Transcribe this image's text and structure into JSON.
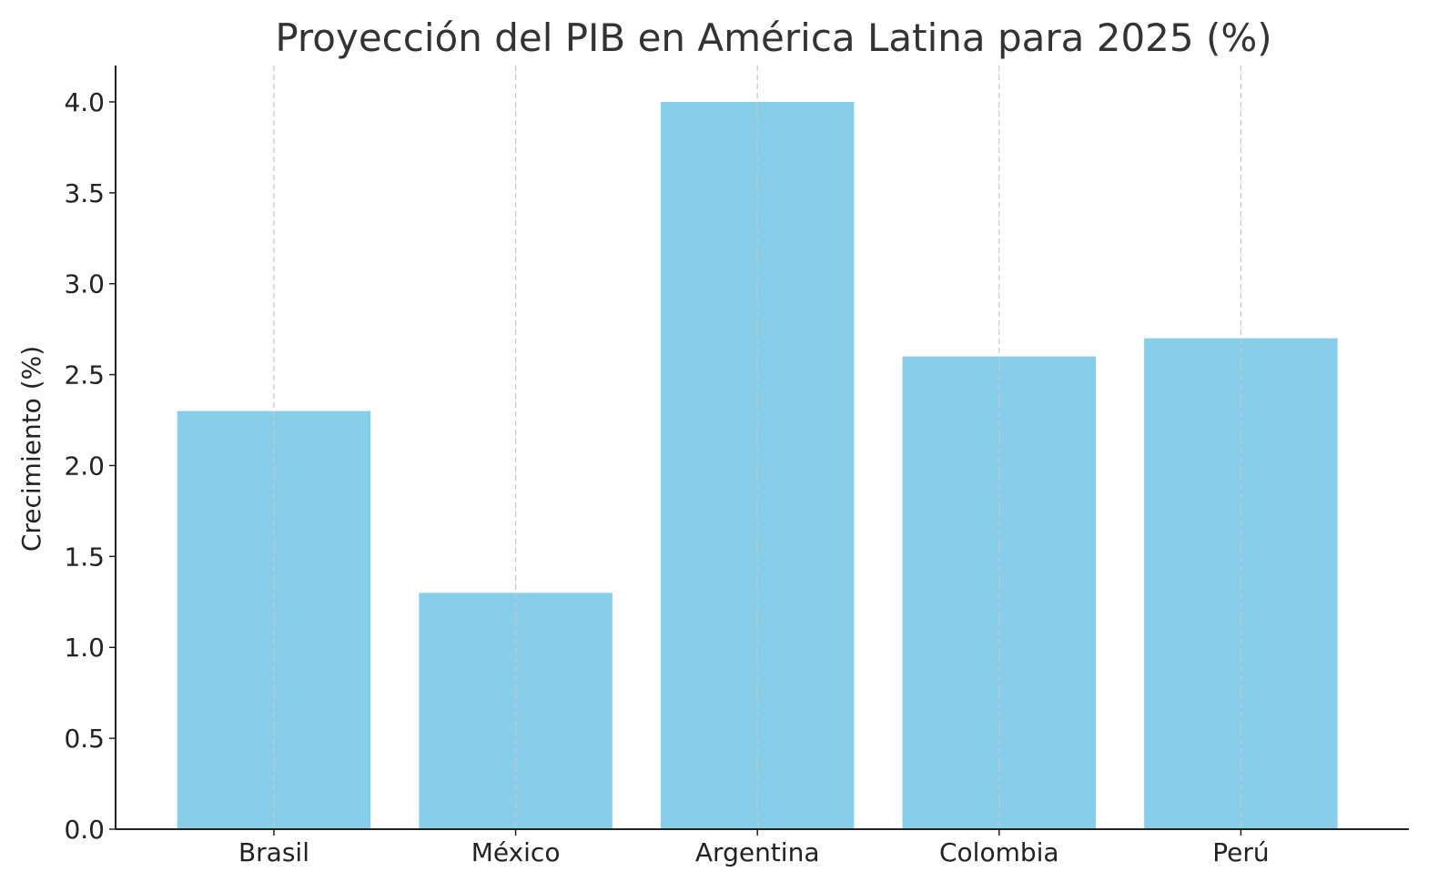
{
  "chart_data": {
    "type": "bar",
    "title": "Proyección del PIB en América Latina para 2025 (%)",
    "xlabel": "",
    "ylabel": "Crecimiento (%)",
    "categories": [
      "Brasil",
      "México",
      "Argentina",
      "Colombia",
      "Perú"
    ],
    "values": [
      2.3,
      1.3,
      4.0,
      2.6,
      2.7
    ],
    "ylim": [
      0,
      4.2
    ],
    "yticks": [
      0.0,
      0.5,
      1.0,
      1.5,
      2.0,
      2.5,
      3.0,
      3.5,
      4.0
    ],
    "ytick_labels": [
      "0.0",
      "0.5",
      "1.0",
      "1.5",
      "2.0",
      "2.5",
      "3.0",
      "3.5",
      "4.0"
    ],
    "grid": "vertical-dashed",
    "bar_color": "#87CEEB"
  }
}
